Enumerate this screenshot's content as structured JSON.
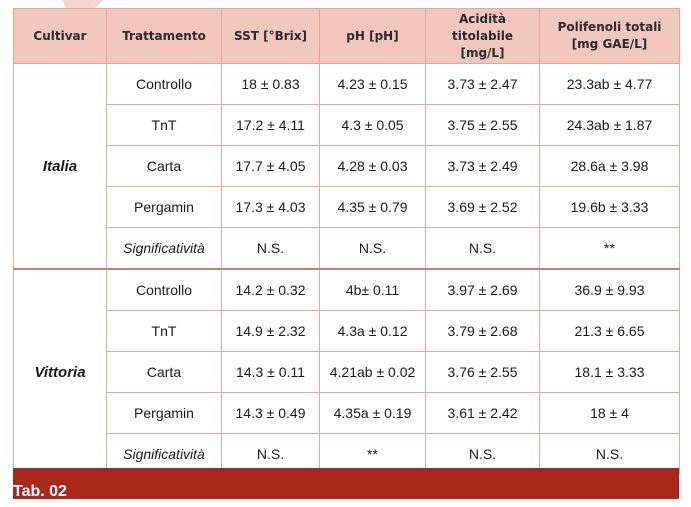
{
  "table": {
    "headers": [
      "Cultivar",
      "Trattamento",
      "SST [°Brix]",
      "pH [pH]",
      "Acidità titolabile [mg/L]",
      "Polifenoli totali [mg GAE/L]"
    ],
    "groups": [
      {
        "cultivar": "Italia",
        "rows": [
          {
            "trattamento": "Controllo",
            "sst": "18 ± 0.83",
            "ph": "4.23 ± 0.15",
            "acidita": "3.73 ± 2.47",
            "polifenoli": "23.3ab ± 4.77"
          },
          {
            "trattamento": "TnT",
            "sst": "17.2 ± 4.11",
            "ph": "4.3 ± 0.05",
            "acidita": "3.75 ± 2.55",
            "polifenoli": "24.3ab ± 1.87"
          },
          {
            "trattamento": "Carta",
            "sst": "17.7 ± 4.05",
            "ph": "4.28 ± 0.03",
            "acidita": "3.73 ± 2.49",
            "polifenoli": "28.6a ± 3.98"
          },
          {
            "trattamento": "Pergamin",
            "sst": "17.3 ± 4.03",
            "ph": "4.35 ± 0.79",
            "acidita": "3.69 ± 2.52",
            "polifenoli": "19.6b ± 3.33"
          },
          {
            "trattamento": "Significatività",
            "sst": "N.S.",
            "ph": "N.S.",
            "acidita": "N.S.",
            "polifenoli": "**"
          }
        ]
      },
      {
        "cultivar": "Vittoria",
        "rows": [
          {
            "trattamento": "Controllo",
            "sst": "14.2 ± 0.32",
            "ph": "4b± 0.11",
            "acidita": "3.97 ± 2.69",
            "polifenoli": "36.9 ± 9.93"
          },
          {
            "trattamento": "TnT",
            "sst": "14.9 ± 2.32",
            "ph": "4.3a ± 0.12",
            "acidita": "3.79 ± 2.68",
            "polifenoli": "21.3 ± 6.65"
          },
          {
            "trattamento": "Carta",
            "sst": "14.3 ± 0.11",
            "ph": "4.21ab ± 0.02",
            "acidita": "3.76 ± 2.55",
            "polifenoli": "18.1 ± 3.33"
          },
          {
            "trattamento": "Pergamin",
            "sst": "14.3 ± 0.49",
            "ph": "4.35a ± 0.19",
            "acidita": "3.61 ± 2.42",
            "polifenoli": "18 ± 4"
          },
          {
            "trattamento": "Significatività",
            "sst": "N.S.",
            "ph": "**",
            "acidita": "N.S.",
            "polifenoli": "N.S."
          }
        ]
      }
    ]
  },
  "footer": {
    "label": "Tab. 02"
  },
  "colors": {
    "header_bg": "#f2c7bd",
    "border": "#e4a79a",
    "footer_bg": "#a8281b"
  }
}
